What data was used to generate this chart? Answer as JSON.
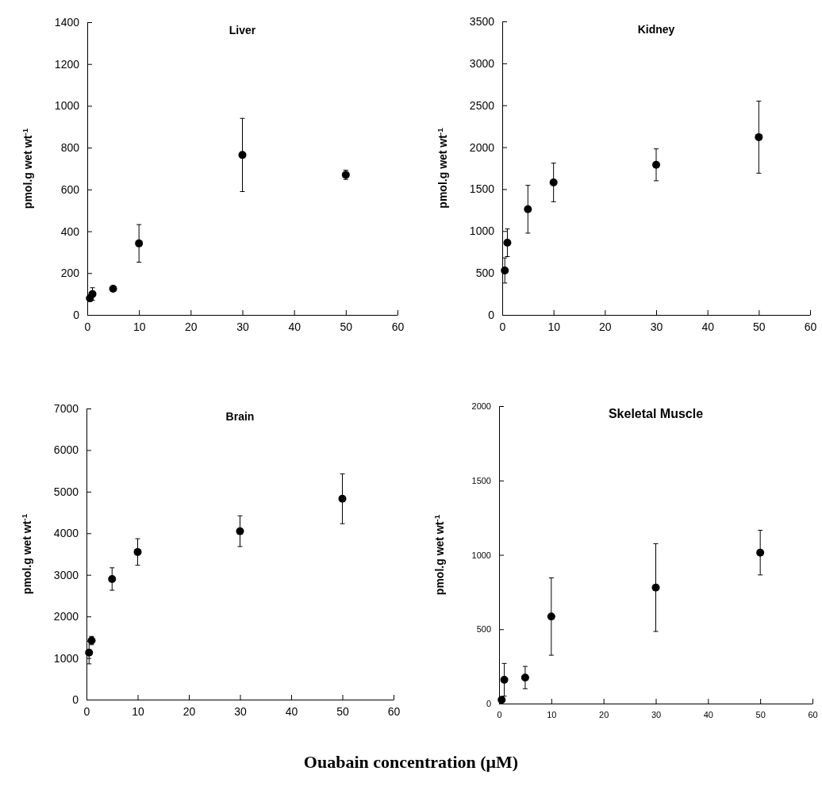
{
  "chart_data": [
    {
      "type": "scatter",
      "title": "Liver",
      "ylabel": "pmol.g wet wt$^{-1}$",
      "x": [
        0.5,
        1,
        5,
        10,
        30,
        50
      ],
      "values": [
        80,
        100,
        125,
        342,
        765,
        670
      ],
      "errors": [
        15,
        30,
        null,
        90,
        175,
        22
      ],
      "color": "#000000",
      "marker": "circle",
      "xlim": [
        0,
        60
      ],
      "xticks": [
        0,
        10,
        20,
        30,
        40,
        50,
        60
      ],
      "ylim": [
        0,
        1400
      ],
      "yticks": [
        0,
        200,
        400,
        600,
        800,
        1000,
        1200,
        1400
      ]
    },
    {
      "type": "scatter",
      "title": "Kidney",
      "ylabel": "pmol.g wet wt$^{-1}$",
      "x": [
        0.5,
        1,
        5,
        10,
        30,
        50
      ],
      "values": [
        530,
        860,
        1260,
        1580,
        1790,
        2120
      ],
      "errors": [
        150,
        165,
        285,
        230,
        190,
        430
      ],
      "color": "#000000",
      "marker": "circle",
      "xlim": [
        0,
        60
      ],
      "xticks": [
        0,
        10,
        20,
        30,
        40,
        50,
        60
      ],
      "ylim": [
        0,
        3500
      ],
      "yticks": [
        0,
        500,
        1000,
        1500,
        2000,
        2500,
        3000,
        3500
      ]
    },
    {
      "type": "scatter",
      "title": "Brain",
      "ylabel": "pmol.g wet wt$^{-1}$",
      "xlabel": "Ouabain concentration (μM)",
      "x": [
        0.5,
        1,
        5,
        10,
        30,
        50
      ],
      "values": [
        1130,
        1420,
        2900,
        3550,
        4050,
        4830
      ],
      "errors": [
        270,
        100,
        270,
        320,
        370,
        600
      ],
      "color": "#000000",
      "marker": "circle",
      "xlim": [
        0,
        60
      ],
      "xticks": [
        0,
        10,
        20,
        30,
        40,
        50,
        60
      ],
      "ylim": [
        0,
        7000
      ],
      "yticks": [
        0,
        1000,
        2000,
        3000,
        4000,
        5000,
        6000,
        7000
      ]
    },
    {
      "type": "scatter",
      "title": "Skeletal Muscle",
      "ylabel": "pmol.g wet wt$^{-1}$",
      "x": [
        0.5,
        1,
        5,
        10,
        30,
        50
      ],
      "values": [
        25,
        160,
        175,
        585,
        780,
        1015
      ],
      "errors": [
        10,
        110,
        75,
        260,
        295,
        150
      ],
      "color": "#000000",
      "marker": "circle",
      "xlim": [
        0,
        60
      ],
      "xticks": [
        0,
        10,
        20,
        30,
        40,
        50,
        60
      ],
      "ylim": [
        0,
        2000
      ],
      "yticks": [
        0,
        500,
        1000,
        1500,
        2000
      ]
    }
  ]
}
